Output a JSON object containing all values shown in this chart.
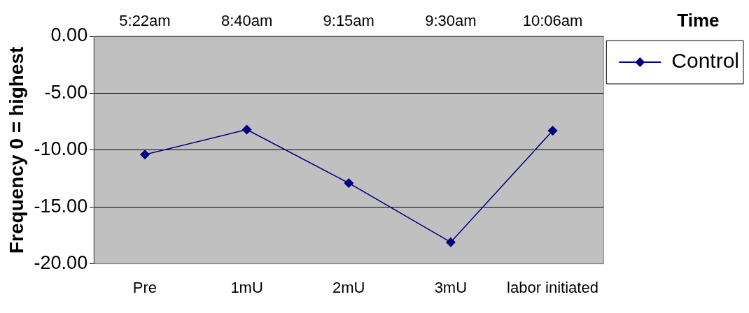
{
  "chart_data": {
    "type": "line",
    "ylabel": "Frequency 0 = highest",
    "x2label": "Time",
    "categories": [
      "Pre",
      "1mU",
      "2mU",
      "3mU",
      "labor initiated"
    ],
    "series": [
      {
        "name": "Control",
        "color": "#000080",
        "values": [
          -10.4,
          -8.2,
          -12.9,
          -18.1,
          -8.3
        ]
      }
    ],
    "ylim": [
      -20,
      0
    ],
    "yticks": [
      {
        "value": -20,
        "label": "-20.00"
      },
      {
        "value": -15,
        "label": "-15.00"
      },
      {
        "value": -10,
        "label": "-10.00"
      },
      {
        "value": -5,
        "label": "-5.00"
      },
      {
        "value": 0,
        "label": "0.00"
      }
    ],
    "annotations": [
      "5:22am",
      "8:40am",
      "9:15am",
      "9:30am",
      "10:06am"
    ],
    "grid": "y",
    "legend": "right",
    "marker": "diamond",
    "line_style": "solid"
  }
}
